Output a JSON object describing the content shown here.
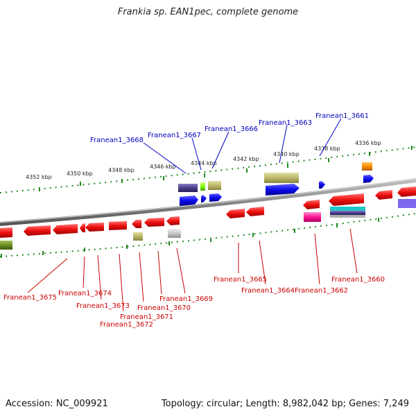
{
  "title": "Frankia sp. EAN1pec, complete genome",
  "footer": {
    "accession": "Accession: NC_009921",
    "topology": "Topology: circular; Length: 8,982,042 bp; Genes: 7,249"
  },
  "scale_labels": [
    "4352 kbp",
    "4350 kbp",
    "4348 kbp",
    "4346 kbp",
    "4344 kbp",
    "4342 kbp",
    "4340 kbp",
    "4338 kbp",
    "4336 kbp"
  ],
  "genes_top": [
    "Franean1_3668",
    "Franean1_3667",
    "Franean1_3666",
    "Franean1_3663",
    "Franean1_3661"
  ],
  "genes_bottom": [
    "Franean1_3675",
    "Franean1_3674",
    "Franean1_3673",
    "Franean1_3672",
    "Franean1_3671",
    "Franean1_3670",
    "Franean1_3669",
    "Franean1_3665",
    "Franean1_3664",
    "Franean1_3662",
    "Franean1_3660"
  ],
  "colors": {
    "backbone": "#8a8a8a",
    "tick": "#1f8a1f",
    "forward_label": "#0000bb",
    "reverse_label": "#cc0000",
    "gene_red": "#e81010",
    "gene_blue": "#1010e8"
  }
}
